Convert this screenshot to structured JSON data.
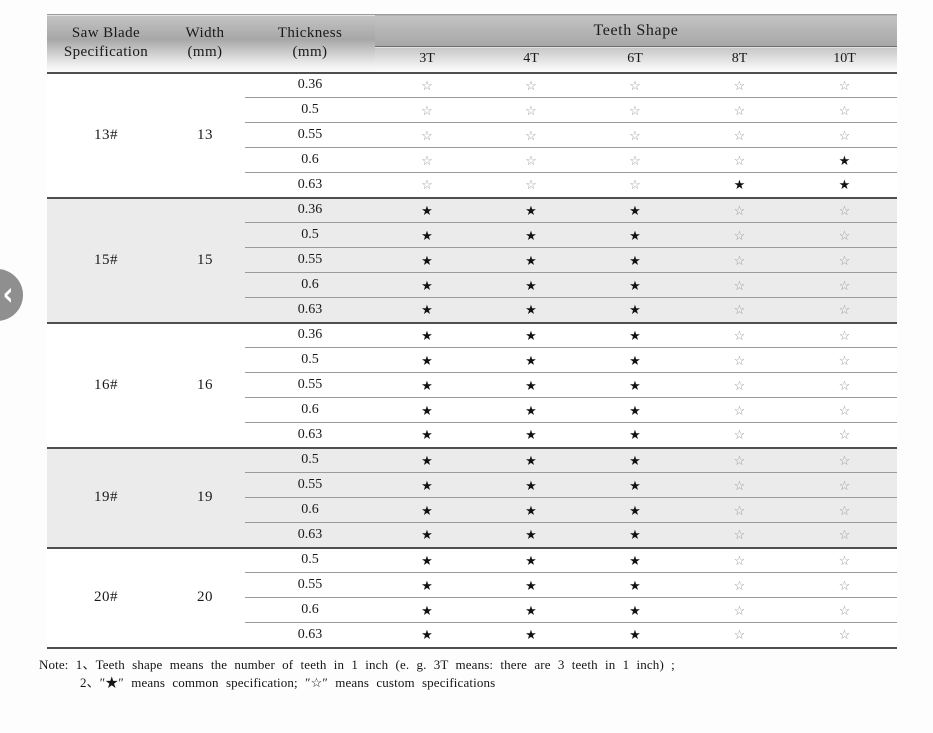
{
  "nav": {
    "chevron": "‹"
  },
  "header": {
    "spec_line1": "Saw Blade",
    "spec_line2": "Specification",
    "width_line1": "Width",
    "width_line2": "(mm)",
    "thickness_line1": "Thickness",
    "thickness_line2": "(mm)",
    "teeth_shape": "Teeth Shape",
    "teeth_cols": [
      "3T",
      "4T",
      "6T",
      "8T",
      "10T"
    ]
  },
  "legend": {
    "filled_symbol": "★",
    "open_symbol": "☆"
  },
  "sections": [
    {
      "spec": "13#",
      "width": "13",
      "shaded": false,
      "rows": [
        {
          "thickness": "0.36",
          "stars": [
            "open",
            "open",
            "open",
            "open",
            "open"
          ]
        },
        {
          "thickness": "0.5",
          "stars": [
            "open",
            "open",
            "open",
            "open",
            "open"
          ]
        },
        {
          "thickness": "0.55",
          "stars": [
            "open",
            "open",
            "open",
            "open",
            "open"
          ]
        },
        {
          "thickness": "0.6",
          "stars": [
            "open",
            "open",
            "open",
            "open",
            "filled"
          ]
        },
        {
          "thickness": "0.63",
          "stars": [
            "open",
            "open",
            "open",
            "filled",
            "filled"
          ]
        }
      ]
    },
    {
      "spec": "15#",
      "width": "15",
      "shaded": true,
      "rows": [
        {
          "thickness": "0.36",
          "stars": [
            "filled",
            "filled",
            "filled",
            "open",
            "open"
          ]
        },
        {
          "thickness": "0.5",
          "stars": [
            "filled",
            "filled",
            "filled",
            "open",
            "open"
          ]
        },
        {
          "thickness": "0.55",
          "stars": [
            "filled",
            "filled",
            "filled",
            "open",
            "open"
          ]
        },
        {
          "thickness": "0.6",
          "stars": [
            "filled",
            "filled",
            "filled",
            "open",
            "open"
          ]
        },
        {
          "thickness": "0.63",
          "stars": [
            "filled",
            "filled",
            "filled",
            "open",
            "open"
          ]
        }
      ]
    },
    {
      "spec": "16#",
      "width": "16",
      "shaded": false,
      "rows": [
        {
          "thickness": "0.36",
          "stars": [
            "filled",
            "filled",
            "filled",
            "open",
            "open"
          ]
        },
        {
          "thickness": "0.5",
          "stars": [
            "filled",
            "filled",
            "filled",
            "open",
            "open"
          ]
        },
        {
          "thickness": "0.55",
          "stars": [
            "filled",
            "filled",
            "filled",
            "open",
            "open"
          ]
        },
        {
          "thickness": "0.6",
          "stars": [
            "filled",
            "filled",
            "filled",
            "open",
            "open"
          ]
        },
        {
          "thickness": "0.63",
          "stars": [
            "filled",
            "filled",
            "filled",
            "open",
            "open"
          ]
        }
      ]
    },
    {
      "spec": "19#",
      "width": "19",
      "shaded": true,
      "rows": [
        {
          "thickness": "0.5",
          "stars": [
            "filled",
            "filled",
            "filled",
            "open",
            "open"
          ]
        },
        {
          "thickness": "0.55",
          "stars": [
            "filled",
            "filled",
            "filled",
            "open",
            "open"
          ]
        },
        {
          "thickness": "0.6",
          "stars": [
            "filled",
            "filled",
            "filled",
            "open",
            "open"
          ]
        },
        {
          "thickness": "0.63",
          "stars": [
            "filled",
            "filled",
            "filled",
            "open",
            "open"
          ]
        }
      ]
    },
    {
      "spec": "20#",
      "width": "20",
      "shaded": false,
      "rows": [
        {
          "thickness": "0.5",
          "stars": [
            "filled",
            "filled",
            "filled",
            "open",
            "open"
          ]
        },
        {
          "thickness": "0.55",
          "stars": [
            "filled",
            "filled",
            "filled",
            "open",
            "open"
          ]
        },
        {
          "thickness": "0.6",
          "stars": [
            "filled",
            "filled",
            "filled",
            "open",
            "open"
          ]
        },
        {
          "thickness": "0.63",
          "stars": [
            "filled",
            "filled",
            "filled",
            "open",
            "open"
          ]
        }
      ]
    }
  ],
  "note": {
    "line1": "Note: 1、Teeth shape means the number of teeth in 1 inch (e. g.  3T  means: there are 3 teeth in 1 inch) ;",
    "line2": "2、″★″ means common specification;  ″☆″ means custom specifications"
  }
}
